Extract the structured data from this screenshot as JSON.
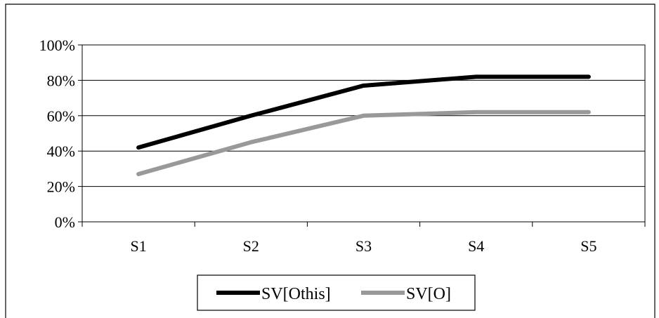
{
  "chart_data": {
    "type": "line",
    "categories": [
      "S1",
      "S2",
      "S3",
      "S4",
      "S5"
    ],
    "y_ticks": [
      "0%",
      "20%",
      "40%",
      "60%",
      "80%",
      "100%"
    ],
    "ylim": [
      0,
      100
    ],
    "grid": true,
    "legend_position": "bottom",
    "series": [
      {
        "name": "SV[Othis]",
        "values": [
          42,
          60,
          77,
          82,
          82
        ],
        "color": "#000000"
      },
      {
        "name": "SV[O]",
        "values": [
          27,
          45,
          60,
          62,
          62
        ],
        "color": "#999999"
      }
    ]
  }
}
